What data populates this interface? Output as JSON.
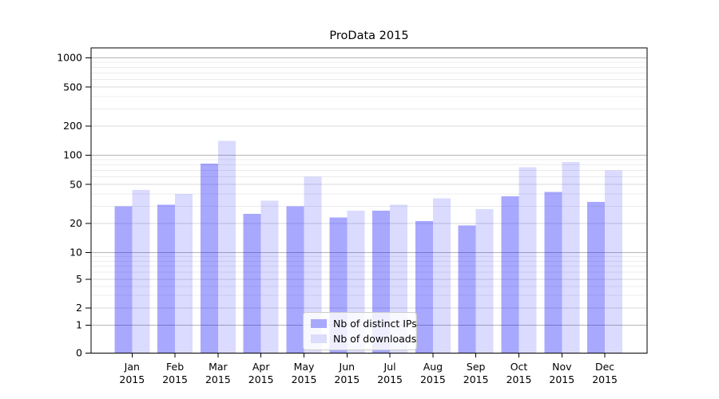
{
  "figure": {
    "background": "#ffffff"
  },
  "chart_data": {
    "type": "bar",
    "title": "ProData 2015",
    "xlabel": "",
    "ylabel": "",
    "y_scale": "symlog",
    "y_ticks": [
      0,
      1,
      2,
      5,
      10,
      20,
      50,
      100,
      200,
      500,
      1000
    ],
    "ylim": [
      0,
      1200
    ],
    "grid": true,
    "categories": [
      "Jan",
      "Feb",
      "Mar",
      "Apr",
      "May",
      "Jun",
      "Jul",
      "Aug",
      "Sep",
      "Oct",
      "Nov",
      "Dec"
    ],
    "x_year_line": "2015",
    "series": [
      {
        "name": "Nb of distinct IPs",
        "color": "rgba(0,0,255,0.34)",
        "swatch_hex": "#a9a9fb",
        "values": [
          30,
          31,
          82,
          25,
          30,
          23,
          27,
          21,
          19,
          38,
          42,
          33
        ]
      },
      {
        "name": "Nb of downloads",
        "color": "rgba(0,0,255,0.14)",
        "swatch_hex": "#dcdcfd",
        "values": [
          44,
          40,
          140,
          34,
          60,
          27,
          31,
          36,
          28,
          75,
          85,
          70
        ]
      }
    ],
    "legend_position": "lower-center",
    "colors": {
      "grid_major": "#b5b5b5",
      "grid_minor_labeled": "#d9d9d9",
      "grid_minor": "#ececec",
      "axis": "#000000",
      "text": "#000000"
    }
  }
}
